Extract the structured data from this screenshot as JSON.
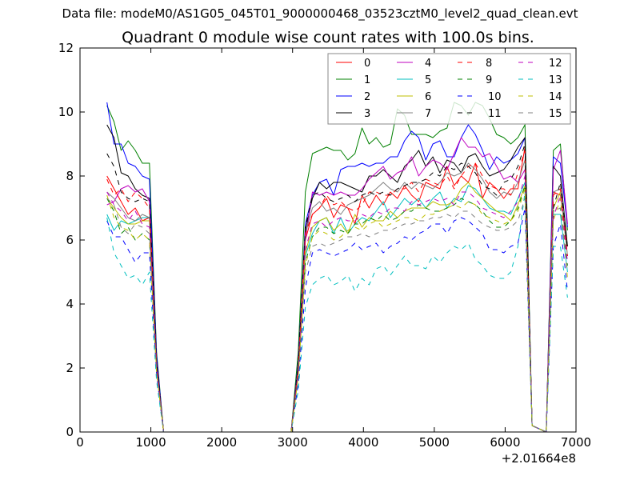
{
  "chart_data": {
    "type": "line",
    "suptitle": "Data file: modeM0/AS1G05_045T01_9000000468_03523cztM0_level2_quad_clean.evt",
    "title": "Quadrant 0 module wise count rates with 100.0s bins.",
    "xlabel": "",
    "ylabel": "",
    "x_offset_label": "+2.01664e8",
    "xlim": [
      0,
      7000
    ],
    "ylim": [
      0,
      12
    ],
    "xticks": [
      0,
      1000,
      2000,
      3000,
      4000,
      5000,
      6000,
      7000
    ],
    "yticks": [
      0,
      2,
      4,
      6,
      8,
      10,
      12
    ],
    "grid": false,
    "legend_placement": "top-right",
    "legend_columns": 4,
    "x": [
      380,
      480,
      580,
      680,
      780,
      880,
      980,
      1080,
      1180,
      1280,
      1380,
      1480,
      1580,
      1680,
      1780,
      1880,
      1980,
      2080,
      2180,
      2280,
      2380,
      2480,
      2580,
      2680,
      2780,
      2880,
      2980,
      3080,
      3180,
      3280,
      3380,
      3480,
      3580,
      3680,
      3780,
      3880,
      3980,
      4080,
      4180,
      4280,
      4380,
      4480,
      4580,
      4680,
      4780,
      4880,
      4980,
      5080,
      5180,
      5280,
      5380,
      5480,
      5580,
      5680,
      5780,
      5880,
      5980,
      6080,
      6180,
      6280,
      6380,
      6480,
      6580,
      6680,
      6780,
      6880
    ],
    "series": [
      {
        "name": "0",
        "color": "#ff0000",
        "style": "solid",
        "values": [
          8.0,
          7.6,
          7.2,
          6.8,
          7.0,
          6.6,
          6.7,
          2.0,
          0,
          0,
          0,
          0,
          0,
          0,
          0,
          0,
          0,
          0,
          0,
          0,
          0,
          0,
          0,
          0,
          0,
          0,
          0,
          2.0,
          6.0,
          6.8,
          7.0,
          7.3,
          6.7,
          7.1,
          7.0,
          6.5,
          7.4,
          7.0,
          7.4,
          7.1,
          7.5,
          7.3,
          7.7,
          7.4,
          7.2,
          7.8,
          7.7,
          7.6,
          8.3,
          7.7,
          8.0,
          7.8,
          8.4,
          7.3,
          7.8,
          7.6,
          7.3,
          7.6,
          7.6,
          8.9,
          0.2,
          0.1,
          0,
          7.5,
          7.4,
          5.8
        ]
      },
      {
        "name": "1",
        "color": "#008000",
        "style": "solid",
        "values": [
          10.2,
          9.7,
          8.8,
          9.1,
          8.8,
          8.4,
          8.4,
          2.5,
          0,
          0,
          0,
          0,
          0,
          0,
          0,
          0,
          0,
          0,
          0,
          0,
          0,
          0,
          0,
          0,
          0,
          0,
          0,
          2.5,
          7.5,
          8.7,
          8.8,
          8.9,
          8.8,
          8.8,
          8.5,
          8.7,
          9.5,
          9.0,
          9.2,
          8.9,
          9.0,
          10.1,
          9.9,
          9.3,
          9.3,
          9.3,
          9.2,
          9.4,
          9.5,
          10.3,
          10.2,
          9.9,
          10.3,
          10.2,
          9.8,
          9.3,
          9.2,
          9.0,
          9.2,
          9.6,
          0.2,
          0.1,
          0,
          8.8,
          9.0,
          6.3
        ]
      },
      {
        "name": "2",
        "color": "#0000ff",
        "style": "solid",
        "values": [
          10.3,
          9.0,
          9.0,
          8.4,
          8.3,
          8.0,
          7.9,
          2.4,
          0,
          0,
          0,
          0,
          0,
          0,
          0,
          0,
          0,
          0,
          0,
          0,
          0,
          0,
          0,
          0,
          0,
          0,
          0,
          2.2,
          6.5,
          7.4,
          7.8,
          7.9,
          7.4,
          8.2,
          8.3,
          8.3,
          8.4,
          8.3,
          8.4,
          8.4,
          8.6,
          8.6,
          9.1,
          9.4,
          9.2,
          8.5,
          9.0,
          9.1,
          8.6,
          8.6,
          9.2,
          9.6,
          9.3,
          8.8,
          8.2,
          8.6,
          8.4,
          8.5,
          8.7,
          9.2,
          0.2,
          0.1,
          0,
          8.6,
          8.4,
          6.4
        ]
      },
      {
        "name": "3",
        "color": "#000000",
        "style": "solid",
        "values": [
          9.6,
          9.2,
          8.1,
          8.0,
          7.6,
          7.4,
          7.3,
          2.2,
          0,
          0,
          0,
          0,
          0,
          0,
          0,
          0,
          0,
          0,
          0,
          0,
          0,
          0,
          0,
          0,
          0,
          0,
          0,
          2.1,
          6.3,
          7.3,
          7.8,
          7.6,
          7.8,
          7.8,
          7.7,
          7.6,
          7.5,
          8.0,
          8.0,
          8.2,
          8.0,
          7.8,
          8.3,
          8.5,
          8.8,
          8.3,
          8.6,
          8.1,
          8.5,
          8.4,
          8.1,
          8.6,
          8.7,
          8.3,
          8.0,
          8.1,
          8.2,
          8.5,
          8.9,
          9.2,
          0.2,
          0.1,
          0,
          8.3,
          8.0,
          5.8
        ]
      },
      {
        "name": "4",
        "color": "#bf00bf",
        "style": "solid",
        "values": [
          7.1,
          7.2,
          7.6,
          7.7,
          7.5,
          7.6,
          7.2,
          2.1,
          0,
          0,
          0,
          0,
          0,
          0,
          0,
          0,
          0,
          0,
          0,
          0,
          0,
          0,
          0,
          0,
          0,
          0,
          0,
          2.0,
          6.0,
          7.5,
          7.4,
          7.5,
          7.4,
          7.5,
          7.4,
          7.4,
          7.6,
          7.9,
          8.1,
          8.3,
          7.9,
          8.1,
          8.2,
          8.6,
          8.0,
          8.3,
          8.5,
          8.4,
          8.2,
          8.7,
          9.2,
          8.9,
          8.9,
          8.6,
          8.7,
          8.3,
          7.9,
          8.0,
          7.8,
          8.2,
          0.2,
          0.1,
          0,
          8.2,
          8.8,
          6.5
        ]
      },
      {
        "name": "5",
        "color": "#00bfbf",
        "style": "solid",
        "values": [
          6.8,
          6.3,
          6.6,
          6.5,
          6.6,
          6.7,
          6.7,
          2.0,
          0,
          0,
          0,
          0,
          0,
          0,
          0,
          0,
          0,
          0,
          0,
          0,
          0,
          0,
          0,
          0,
          0,
          0,
          0,
          1.8,
          5.5,
          6.2,
          6.6,
          6.7,
          6.2,
          6.7,
          6.2,
          6.5,
          6.7,
          6.6,
          6.9,
          7.2,
          6.7,
          7.0,
          7.3,
          7.1,
          7.3,
          7.0,
          7.3,
          7.5,
          7.0,
          7.3,
          7.2,
          7.7,
          7.6,
          7.3,
          7.0,
          6.9,
          6.9,
          6.8,
          7.3,
          7.8,
          0.2,
          0.1,
          0,
          6.8,
          6.8,
          5.0
        ]
      },
      {
        "name": "6",
        "color": "#bfbf00",
        "style": "solid",
        "values": [
          7.3,
          7.0,
          6.7,
          6.5,
          6.5,
          6.6,
          6.6,
          2.0,
          0,
          0,
          0,
          0,
          0,
          0,
          0,
          0,
          0,
          0,
          0,
          0,
          0,
          0,
          0,
          0,
          0,
          0,
          0,
          1.9,
          5.6,
          6.4,
          6.6,
          6.7,
          6.3,
          6.5,
          6.2,
          6.8,
          6.4,
          6.7,
          6.6,
          6.6,
          6.9,
          6.7,
          6.9,
          7.0,
          7.0,
          7.0,
          7.2,
          7.1,
          7.1,
          7.2,
          7.6,
          7.8,
          7.5,
          7.3,
          7.1,
          6.9,
          6.8,
          6.6,
          7.1,
          7.7,
          0.2,
          0.1,
          0,
          7.0,
          7.5,
          5.5
        ]
      },
      {
        "name": "7",
        "color": "#808080",
        "style": "solid",
        "values": [
          7.5,
          7.3,
          7.0,
          6.7,
          6.6,
          6.8,
          6.7,
          2.0,
          0,
          0,
          0,
          0,
          0,
          0,
          0,
          0,
          0,
          0,
          0,
          0,
          0,
          0,
          0,
          0,
          0,
          0,
          0,
          2.0,
          6.2,
          7.0,
          7.2,
          6.9,
          7.0,
          6.8,
          7.1,
          7.2,
          7.3,
          7.4,
          7.6,
          7.8,
          7.6,
          7.5,
          7.8,
          7.6,
          7.8,
          7.7,
          7.6,
          7.8,
          8.1,
          8.0,
          8.1,
          8.4,
          8.2,
          7.9,
          7.5,
          7.3,
          7.5,
          7.4,
          7.8,
          8.5,
          0.2,
          0.1,
          0,
          7.5,
          7.6,
          5.5
        ]
      },
      {
        "name": "8",
        "color": "#ff0000",
        "style": "dashed",
        "values": [
          7.9,
          7.4,
          7.6,
          7.2,
          7.5,
          7.3,
          7.0,
          2.1,
          0,
          0,
          0,
          0,
          0,
          0,
          0,
          0,
          0,
          0,
          0,
          0,
          0,
          0,
          0,
          0,
          0,
          0,
          0,
          2.0,
          6.2,
          6.8,
          7.0,
          7.4,
          7.1,
          7.2,
          7.0,
          6.9,
          7.1,
          7.5,
          7.5,
          7.4,
          7.4,
          7.6,
          7.6,
          7.8,
          7.5,
          7.9,
          7.8,
          7.7,
          8.0,
          7.6,
          8.0,
          8.3,
          8.4,
          8.0,
          7.7,
          7.6,
          7.6,
          7.4,
          8.1,
          8.8,
          0.2,
          0.1,
          0,
          7.4,
          7.6,
          5.5
        ]
      },
      {
        "name": "9",
        "color": "#008000",
        "style": "dashed",
        "values": [
          7.3,
          6.9,
          6.2,
          6.4,
          6.0,
          6.2,
          6.0,
          1.9,
          0,
          0,
          0,
          0,
          0,
          0,
          0,
          0,
          0,
          0,
          0,
          0,
          0,
          0,
          0,
          0,
          0,
          0,
          0,
          1.8,
          5.3,
          6.1,
          6.4,
          6.4,
          6.2,
          6.3,
          6.2,
          6.5,
          6.5,
          6.7,
          6.6,
          6.8,
          6.6,
          6.7,
          6.9,
          6.9,
          7.1,
          7.0,
          6.9,
          6.9,
          7.0,
          7.1,
          7.3,
          7.2,
          7.1,
          6.9,
          6.6,
          6.4,
          6.4,
          6.6,
          7.0,
          7.7,
          0.2,
          0.1,
          0,
          6.9,
          7.0,
          5.2
        ]
      },
      {
        "name": "10",
        "color": "#0000ff",
        "style": "dashed",
        "values": [
          6.6,
          6.1,
          6.1,
          5.7,
          5.3,
          5.6,
          5.6,
          1.8,
          0,
          0,
          0,
          0,
          0,
          0,
          0,
          0,
          0,
          0,
          0,
          0,
          0,
          0,
          0,
          0,
          0,
          0,
          0,
          1.5,
          4.5,
          5.6,
          5.7,
          5.6,
          5.5,
          5.6,
          5.7,
          5.9,
          5.7,
          5.8,
          5.9,
          5.6,
          5.8,
          5.9,
          6.1,
          6.0,
          6.2,
          6.3,
          6.5,
          6.5,
          6.2,
          6.6,
          6.7,
          6.6,
          6.4,
          6.2,
          5.7,
          5.7,
          5.6,
          5.8,
          5.9,
          7.0,
          0.2,
          0.1,
          0,
          5.8,
          6.5,
          4.4
        ]
      },
      {
        "name": "11",
        "color": "#000000",
        "style": "dashed",
        "values": [
          8.7,
          8.3,
          7.5,
          7.3,
          7.2,
          7.3,
          7.2,
          2.2,
          0,
          0,
          0,
          0,
          0,
          0,
          0,
          0,
          0,
          0,
          0,
          0,
          0,
          0,
          0,
          0,
          0,
          0,
          0,
          2.1,
          6.4,
          7.4,
          7.5,
          7.3,
          7.2,
          7.3,
          7.4,
          7.2,
          7.4,
          7.5,
          7.4,
          7.5,
          7.4,
          7.6,
          7.7,
          7.8,
          7.8,
          7.9,
          8.1,
          8.0,
          8.3,
          8.2,
          8.4,
          8.3,
          8.1,
          7.7,
          7.6,
          7.4,
          7.8,
          7.9,
          8.3,
          9.0,
          0.2,
          0.1,
          0,
          7.0,
          7.8,
          5.7
        ]
      },
      {
        "name": "12",
        "color": "#bf00bf",
        "style": "dashed",
        "values": [
          7.5,
          7.1,
          6.9,
          6.6,
          6.9,
          6.5,
          6.4,
          2.0,
          0,
          0,
          0,
          0,
          0,
          0,
          0,
          0,
          0,
          0,
          0,
          0,
          0,
          0,
          0,
          0,
          0,
          0,
          0,
          1.9,
          5.7,
          6.5,
          6.6,
          6.4,
          6.6,
          6.7,
          6.6,
          6.6,
          6.8,
          6.7,
          6.9,
          6.8,
          7.0,
          7.0,
          6.9,
          7.2,
          7.1,
          7.2,
          7.3,
          7.2,
          7.3,
          7.1,
          7.5,
          7.5,
          7.3,
          7.0,
          6.9,
          6.8,
          6.7,
          6.9,
          7.2,
          8.0,
          0.2,
          0.1,
          0,
          6.7,
          7.4,
          5.3
        ]
      },
      {
        "name": "13",
        "color": "#00bfbf",
        "style": "dashed",
        "values": [
          6.7,
          5.6,
          5.2,
          4.8,
          4.9,
          4.6,
          5.0,
          1.6,
          0,
          0,
          0,
          0,
          0,
          0,
          0,
          0,
          0,
          0,
          0,
          0,
          0,
          0,
          0,
          0,
          0,
          0,
          0,
          1.3,
          3.9,
          4.6,
          4.8,
          4.9,
          4.6,
          4.7,
          4.9,
          4.4,
          4.8,
          4.6,
          5.1,
          5.2,
          4.9,
          5.2,
          5.5,
          5.2,
          5.2,
          5.1,
          5.5,
          5.3,
          5.6,
          5.8,
          5.7,
          5.9,
          5.4,
          5.2,
          4.9,
          4.8,
          4.8,
          5.0,
          5.8,
          7.5,
          0.2,
          0.1,
          0,
          5.8,
          5.8,
          4.2
        ]
      },
      {
        "name": "14",
        "color": "#bfbf00",
        "style": "dashed",
        "values": [
          7.4,
          6.7,
          6.4,
          6.3,
          6.0,
          6.2,
          6.0,
          1.9,
          0,
          0,
          0,
          0,
          0,
          0,
          0,
          0,
          0,
          0,
          0,
          0,
          0,
          0,
          0,
          0,
          0,
          0,
          0,
          1.7,
          5.2,
          6.1,
          6.3,
          6.2,
          6.0,
          6.1,
          6.3,
          6.4,
          6.3,
          6.5,
          6.6,
          6.4,
          6.5,
          6.6,
          6.7,
          6.7,
          6.6,
          6.8,
          6.8,
          6.9,
          7.0,
          7.1,
          7.0,
          7.2,
          7.1,
          6.8,
          6.7,
          6.6,
          6.5,
          6.6,
          6.9,
          7.6,
          0.2,
          0.1,
          0,
          6.6,
          7.3,
          4.8
        ]
      },
      {
        "name": "15",
        "color": "#808080",
        "style": "dashed",
        "values": [
          7.3,
          7.1,
          6.4,
          6.2,
          6.5,
          6.4,
          6.2,
          1.9,
          0,
          0,
          0,
          0,
          0,
          0,
          0,
          0,
          0,
          0,
          0,
          0,
          0,
          0,
          0,
          0,
          0,
          0,
          0,
          1.7,
          5.0,
          5.8,
          5.9,
          5.8,
          5.9,
          6.0,
          6.1,
          6.1,
          6.2,
          6.1,
          6.2,
          6.3,
          6.3,
          6.4,
          6.5,
          6.5,
          6.6,
          6.6,
          6.7,
          6.7,
          6.8,
          6.7,
          6.9,
          6.9,
          6.7,
          6.5,
          6.4,
          6.3,
          6.3,
          6.4,
          6.6,
          7.3,
          0.2,
          0.1,
          0,
          6.9,
          7.0,
          5.0
        ]
      }
    ]
  }
}
